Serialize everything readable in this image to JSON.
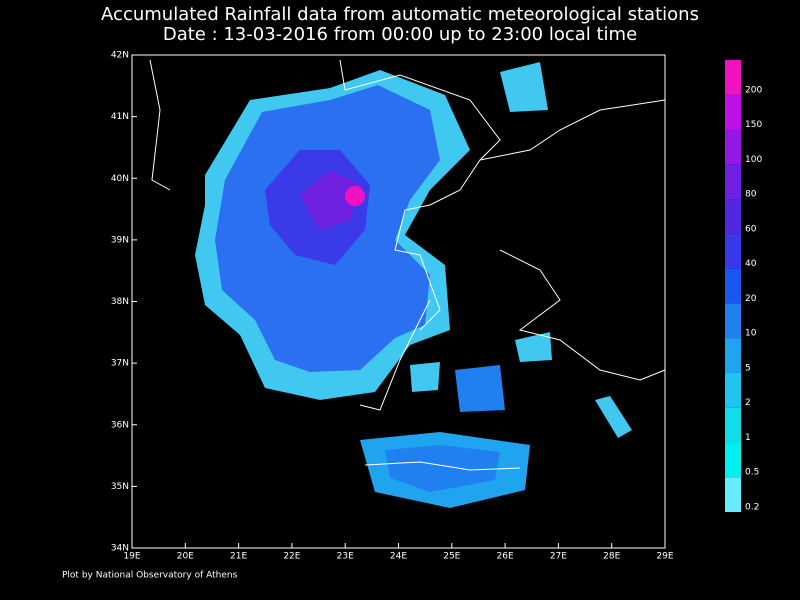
{
  "header": {
    "title": "Accumulated Rainfall data from automatic meteorological stations",
    "subtitle": "Date : 13-03-2016 from 00:00 up to 23:00 local time"
  },
  "map": {
    "lat_labels": [
      "42N",
      "41N",
      "40N",
      "39N",
      "38N",
      "37N",
      "36N",
      "35N",
      "34N"
    ],
    "lon_labels": [
      "19E",
      "20E",
      "21E",
      "22E",
      "23E",
      "24E",
      "25E",
      "26E",
      "27E",
      "28E",
      "29E"
    ]
  },
  "legend": {
    "levels": [
      "0.2",
      "0.5",
      "1",
      "2",
      "5",
      "10",
      "20",
      "40",
      "60",
      "80",
      "100",
      "150",
      "200"
    ],
    "colors": [
      "#66ecff",
      "#00f0f0",
      "#10dde8",
      "#20c4f0",
      "#20a4f0",
      "#2080f0",
      "#1858f0",
      "#3838e8",
      "#5028e0",
      "#7020e0",
      "#9418e4",
      "#c010e8",
      "#f012c0"
    ]
  },
  "footer": {
    "credit": "Plot by National Observatory of Athens"
  }
}
